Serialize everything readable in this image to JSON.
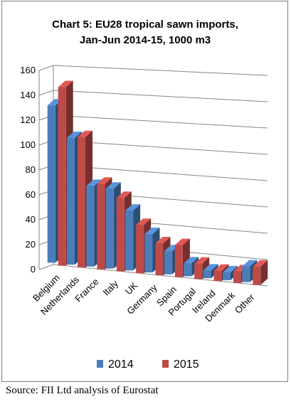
{
  "chart_data": {
    "type": "bar",
    "title_line1": "Chart 5: EU28 tropical sawn imports,",
    "title_line2": "Jan-Jun 2014-15, 1000 m3",
    "categories": [
      "Belgium",
      "Netherlands",
      "France",
      "Italy",
      "UK",
      "Germany",
      "Spain",
      "Portugal",
      "Ireland",
      "Denmark",
      "Other"
    ],
    "series": [
      {
        "name": "2014",
        "color": "#4a7ebb",
        "values": [
          126,
          101,
          64,
          63,
          47,
          30,
          18,
          10,
          6,
          6,
          12
        ]
      },
      {
        "name": "2015",
        "color": "#be4b48",
        "values": [
          143,
          104,
          68,
          58,
          38,
          25,
          25,
          12,
          8,
          9,
          14
        ]
      }
    ],
    "ylim": [
      0,
      160
    ],
    "yticks": [
      0,
      20,
      40,
      60,
      80,
      100,
      120,
      140,
      160
    ],
    "grid": true,
    "legend": "bottom",
    "projection": "3d-perspective"
  },
  "source_note": "Source: FII Ltd analysis of Eurostat"
}
